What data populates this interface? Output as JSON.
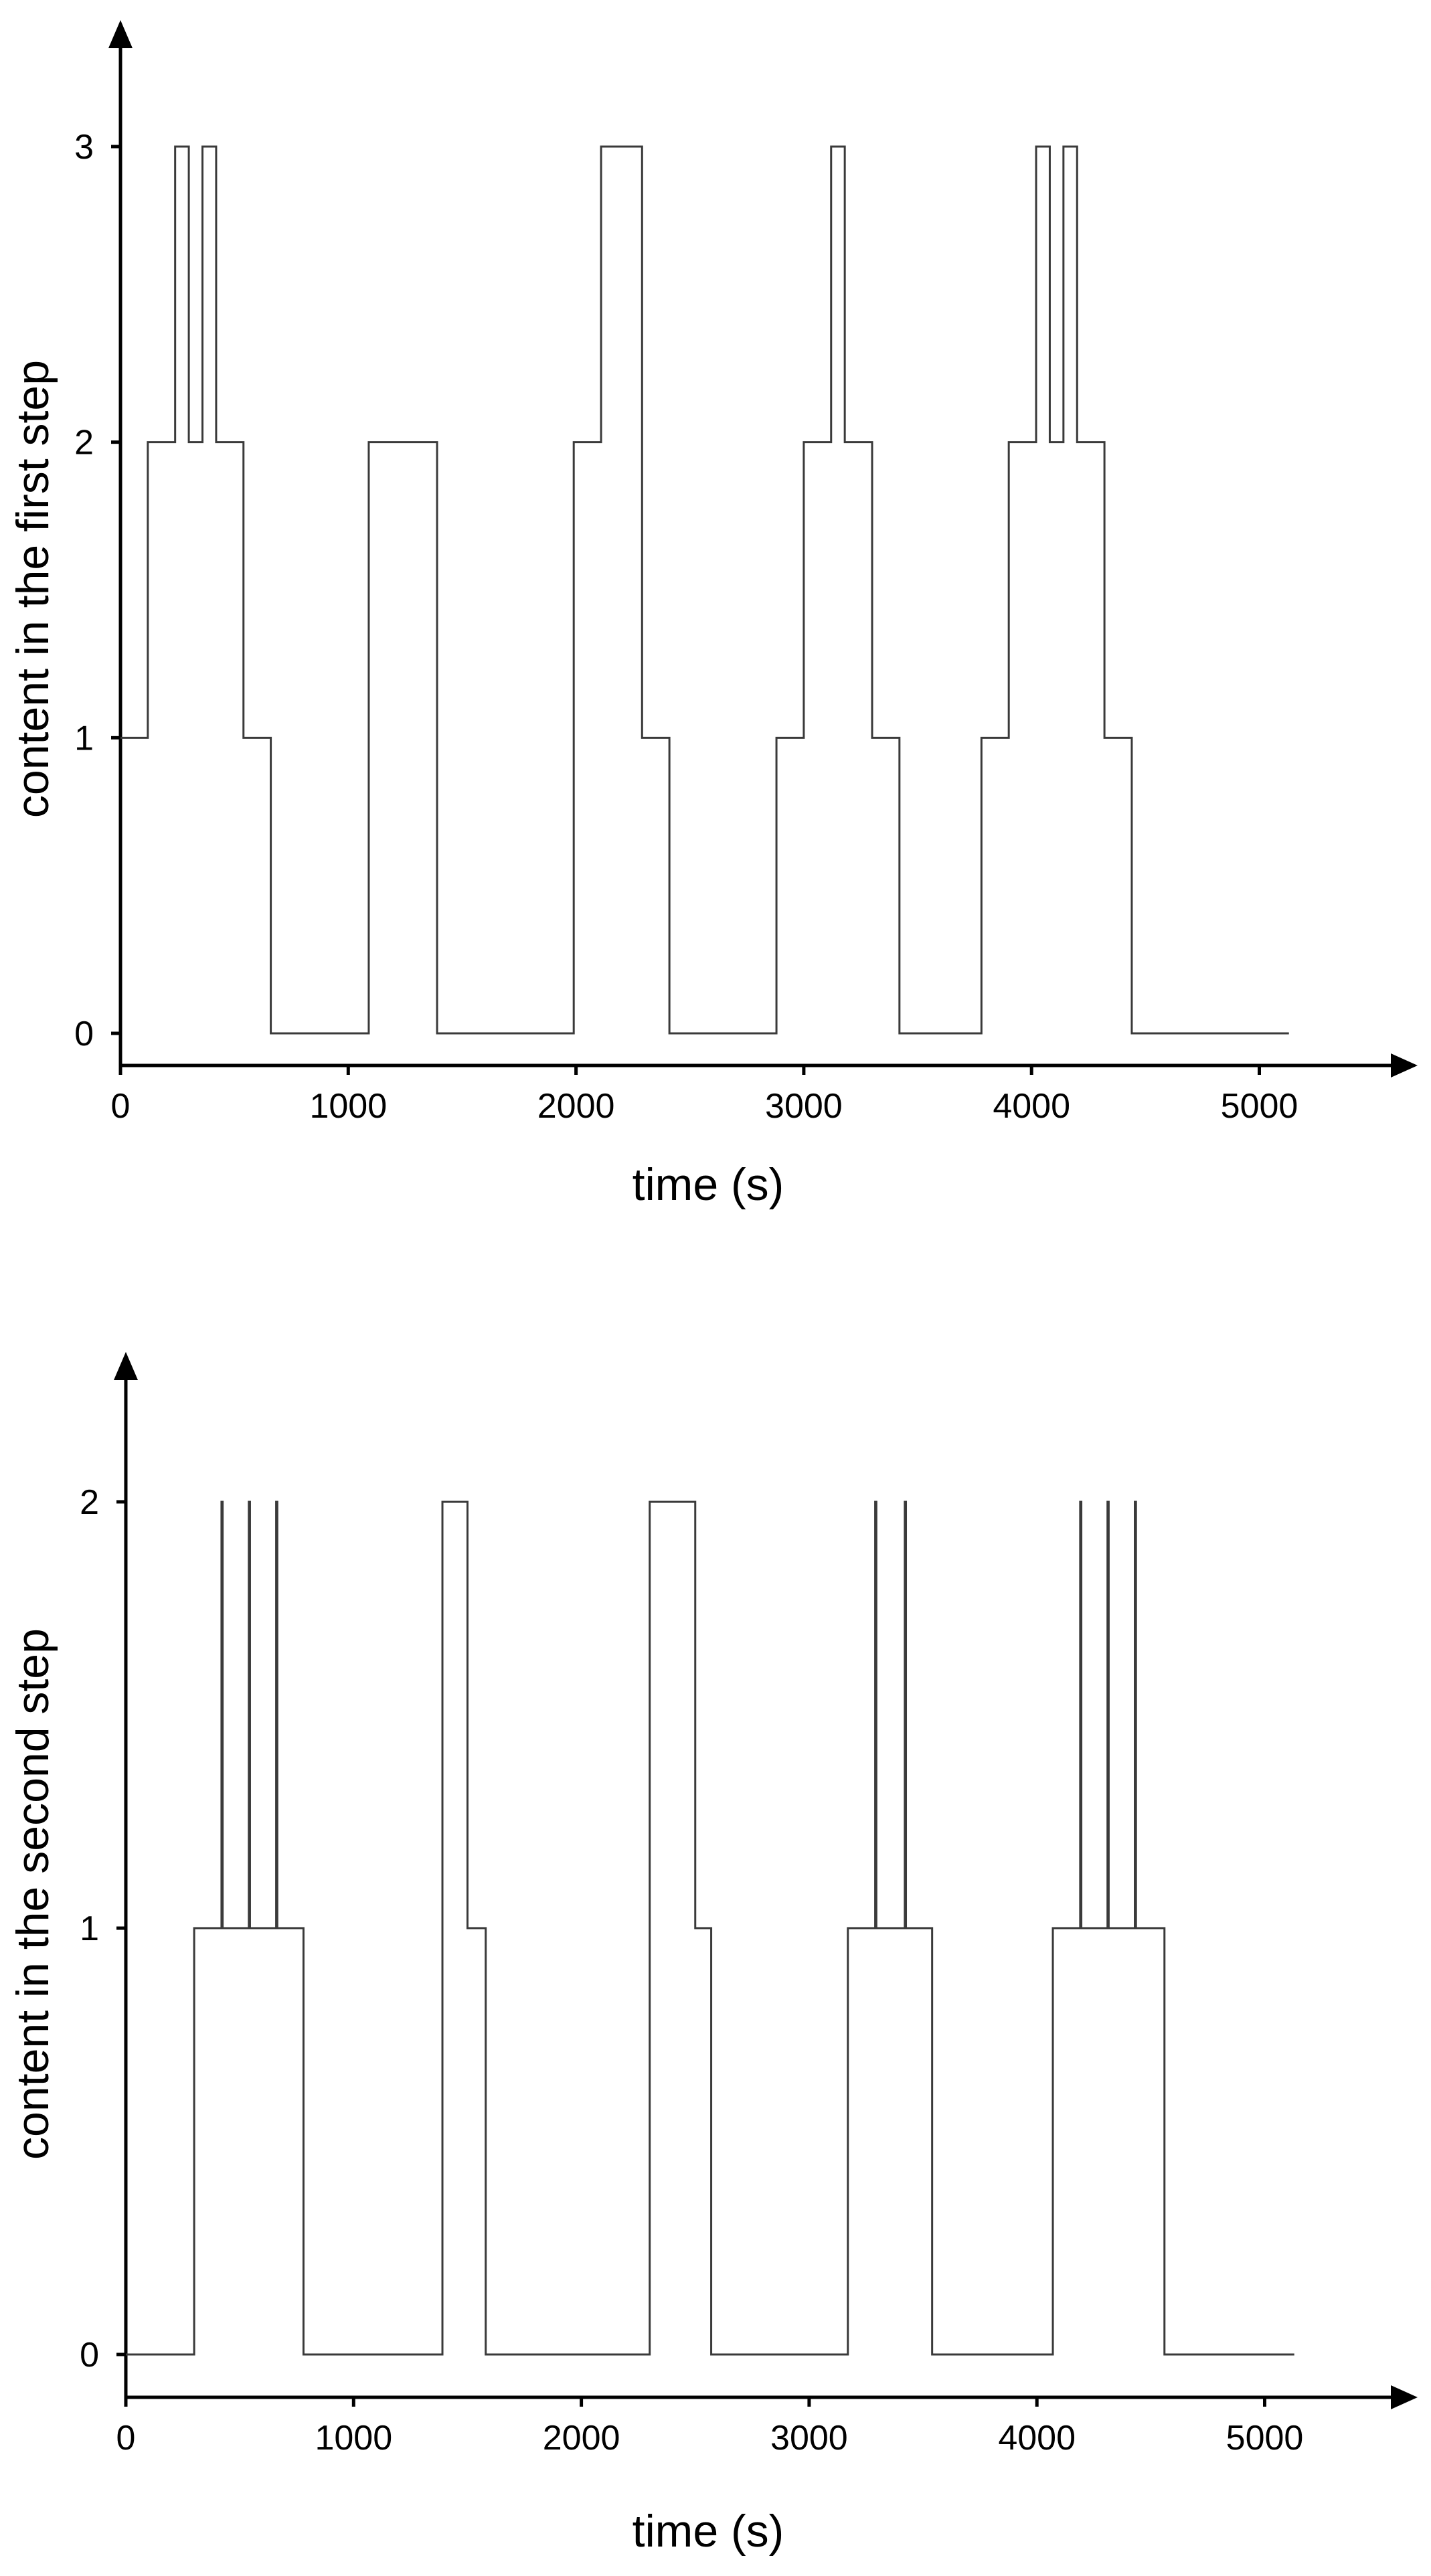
{
  "chart_data": [
    {
      "type": "line",
      "step": true,
      "xlabel": "time (s)",
      "ylabel": "content in the first step",
      "xlim": [
        0,
        5600
      ],
      "ylim": [
        -0.1,
        3.35
      ],
      "xticks": [
        0,
        1000,
        2000,
        3000,
        4000,
        5000
      ],
      "yticks": [
        0,
        1,
        2,
        3
      ],
      "x_tick_labels": [
        "0",
        "1000",
        "2000",
        "3000",
        "4000",
        "5000"
      ],
      "y_tick_labels": [
        "0",
        "1",
        "2",
        "3"
      ],
      "grid": false,
      "series": [
        {
          "x": [
            0,
            120,
            240,
            300,
            360,
            420,
            540,
            660,
            1090,
            1390,
            1990,
            2110,
            2290,
            2410,
            2880,
            3000,
            3120,
            3180,
            3300,
            3420,
            3780,
            3900,
            4020,
            4080,
            4140,
            4200,
            4320,
            4440,
            5130
          ],
          "y": [
            1,
            2,
            3,
            2,
            3,
            2,
            1,
            0,
            2,
            0,
            2,
            3,
            1,
            0,
            1,
            2,
            3,
            2,
            1,
            0,
            1,
            2,
            3,
            2,
            3,
            2,
            1,
            0,
            0
          ]
        }
      ]
    },
    {
      "type": "line",
      "step": true,
      "xlabel": "time (s)",
      "ylabel": "content in the second step",
      "xlim": [
        0,
        5600
      ],
      "ylim": [
        -0.1,
        2.3
      ],
      "xticks": [
        0,
        1000,
        2000,
        3000,
        4000,
        5000
      ],
      "yticks": [
        0,
        1,
        2
      ],
      "x_tick_labels": [
        "0",
        "1000",
        "2000",
        "3000",
        "4000",
        "5000"
      ],
      "y_tick_labels": [
        "0",
        "1",
        "2"
      ],
      "grid": false,
      "series": [
        {
          "x": [
            0,
            300,
            420,
            425,
            540,
            545,
            660,
            665,
            780,
            1390,
            1500,
            1580,
            2300,
            2500,
            2570,
            3170,
            3290,
            3295,
            3420,
            3425,
            3540,
            4070,
            4190,
            4195,
            4310,
            4315,
            4430,
            4435,
            4560,
            5130
          ],
          "y": [
            0,
            1,
            2,
            1,
            2,
            1,
            2,
            1,
            0,
            2,
            1,
            0,
            2,
            1,
            0,
            1,
            2,
            1,
            2,
            1,
            0,
            1,
            2,
            1,
            2,
            1,
            2,
            1,
            0,
            0
          ]
        }
      ]
    }
  ]
}
